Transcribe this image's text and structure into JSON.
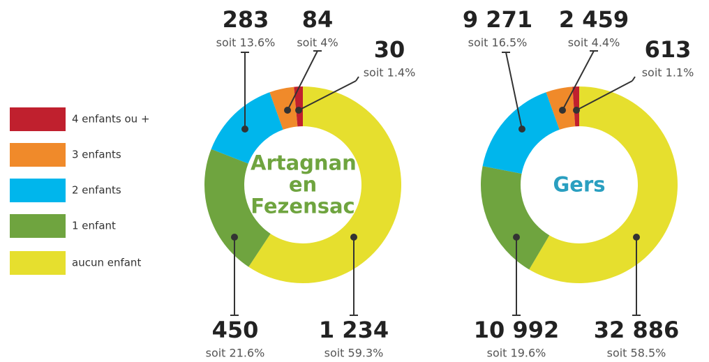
{
  "chart_data": [
    {
      "type": "pie",
      "donut": true,
      "title": "Artagnan en Fezensac",
      "title_color": "#6fa43f",
      "categories": [
        "4 enfants ou +",
        "3 enfants",
        "2 enfants",
        "1 enfant",
        "aucun enfant"
      ],
      "colors": [
        "#c0202e",
        "#f08a2a",
        "#00b6ec",
        "#6fa43f",
        "#e6df2e"
      ],
      "values": [
        30,
        84,
        283,
        450,
        1234
      ],
      "value_labels": [
        "30",
        "84",
        "283",
        "450",
        "1 234"
      ],
      "percent_labels": [
        "soit 1.4%",
        "soit 4%",
        "soit 13.6%",
        "soit 21.6%",
        "soit 59.3%"
      ]
    },
    {
      "type": "pie",
      "donut": true,
      "title": "Gers",
      "title_color": "#2a9fc0",
      "categories": [
        "4 enfants ou +",
        "3 enfants",
        "2 enfants",
        "1 enfant",
        "aucun enfant"
      ],
      "colors": [
        "#c0202e",
        "#f08a2a",
        "#00b6ec",
        "#6fa43f",
        "#e6df2e"
      ],
      "values": [
        613,
        2459,
        9271,
        10992,
        32886
      ],
      "value_labels": [
        "613",
        "2 459",
        "9 271",
        "10 992",
        "32 886"
      ],
      "percent_labels": [
        "soit 1.1%",
        "soit 4.4%",
        "soit 16.5%",
        "soit 19.6%",
        "soit 58.5%"
      ]
    }
  ]
}
